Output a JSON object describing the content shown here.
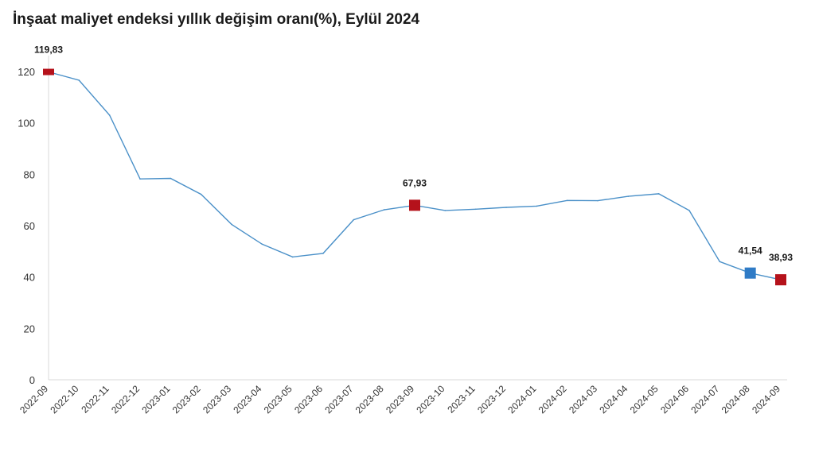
{
  "chart_data": {
    "type": "line",
    "title": "İnşaat maliyet endeksi yıllık değişim oranı(%), Eylül 2024",
    "xlabel": "",
    "ylabel": "",
    "ylim": [
      0,
      120
    ],
    "yticks": [
      0,
      20,
      40,
      60,
      80,
      100,
      120
    ],
    "categories": [
      "2022-09",
      "2022-10",
      "2022-11",
      "2022-12",
      "2023-01",
      "2023-02",
      "2023-03",
      "2023-04",
      "2023-05",
      "2023-06",
      "2023-07",
      "2023-08",
      "2023-09",
      "2023-10",
      "2023-11",
      "2023-12",
      "2024-01",
      "2024-02",
      "2024-03",
      "2024-04",
      "2024-05",
      "2024-06",
      "2024-07",
      "2024-08",
      "2024-09"
    ],
    "series": [
      {
        "values": [
          119.83,
          116.6,
          103.0,
          78.2,
          78.4,
          72.2,
          60.5,
          52.8,
          47.8,
          49.2,
          62.3,
          66.2,
          67.93,
          65.9,
          66.4,
          67.1,
          67.6,
          69.8,
          69.7,
          71.4,
          72.4,
          65.9,
          46.0,
          41.54,
          38.93
        ],
        "color": "#4a90c8"
      }
    ],
    "highlights": [
      {
        "category": "2022-09",
        "value": 119.83,
        "label": "119,83",
        "color": "#b5121b"
      },
      {
        "category": "2023-09",
        "value": 67.93,
        "label": "67,93",
        "color": "#b5121b"
      },
      {
        "category": "2024-08",
        "value": 41.54,
        "label": "41,54",
        "color": "#2f7bc6"
      },
      {
        "category": "2024-09",
        "value": 38.93,
        "label": "38,93",
        "color": "#b5121b"
      }
    ],
    "grid": false,
    "axis_color": "#d9d9d9"
  }
}
